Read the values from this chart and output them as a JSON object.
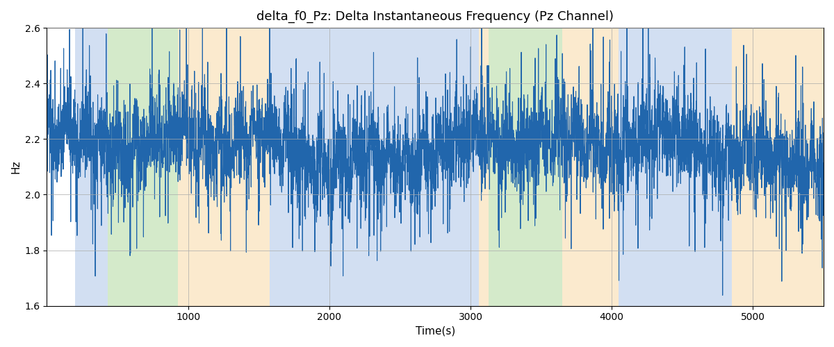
{
  "title": "delta_f0_Pz: Delta Instantaneous Frequency (Pz Channel)",
  "xlabel": "Time(s)",
  "ylabel": "Hz",
  "ylim": [
    1.6,
    2.6
  ],
  "xlim": [
    0,
    5500
  ],
  "line_color": "#2166ac",
  "line_width": 0.8,
  "grid_color": "#aaaaaa",
  "bg_bands": [
    {
      "xstart": 200,
      "xend": 430,
      "color": "#aec6e8",
      "alpha": 0.55
    },
    {
      "xstart": 430,
      "xend": 930,
      "color": "#b2d9a0",
      "alpha": 0.55
    },
    {
      "xstart": 930,
      "xend": 1580,
      "color": "#f9d9a6",
      "alpha": 0.55
    },
    {
      "xstart": 1580,
      "xend": 3060,
      "color": "#aec6e8",
      "alpha": 0.55
    },
    {
      "xstart": 3060,
      "xend": 3130,
      "color": "#f9d9a6",
      "alpha": 0.55
    },
    {
      "xstart": 3130,
      "xend": 3650,
      "color": "#b2d9a0",
      "alpha": 0.55
    },
    {
      "xstart": 3650,
      "xend": 4050,
      "color": "#f9d9a6",
      "alpha": 0.55
    },
    {
      "xstart": 4050,
      "xend": 4850,
      "color": "#aec6e8",
      "alpha": 0.55
    },
    {
      "xstart": 4850,
      "xend": 5500,
      "color": "#f9d9a6",
      "alpha": 0.55
    }
  ],
  "figsize": [
    12,
    5
  ],
  "dpi": 100,
  "xticks": [
    1000,
    2000,
    3000,
    4000,
    5000
  ],
  "yticks": [
    1.6,
    1.8,
    2.0,
    2.2,
    2.4,
    2.6
  ]
}
